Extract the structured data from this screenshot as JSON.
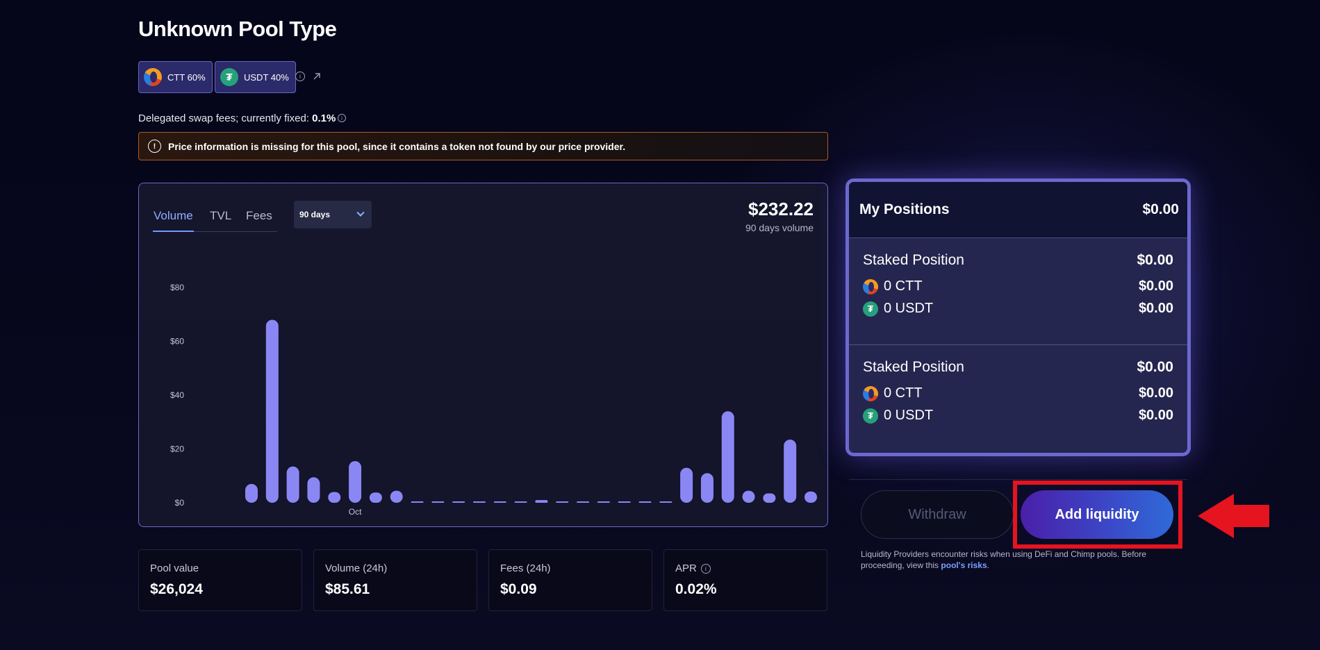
{
  "header": {
    "title": "Unknown Pool Type",
    "tokens": [
      {
        "symbol": "CTT",
        "weight": "CTT 60%",
        "icon": "ctt-token-icon"
      },
      {
        "symbol": "USDT",
        "weight": "USDT 40%",
        "icon": "usdt-token-icon"
      }
    ],
    "fees_prefix": "Delegated swap fees; currently fixed: ",
    "fees_value": "0.1%"
  },
  "alert": {
    "icon": "alert-icon",
    "text": "Price information is missing for this pool, since it contains a token not found by our price provider."
  },
  "chart_panel": {
    "tabs": [
      "Volume",
      "TVL",
      "Fees"
    ],
    "active_tab": "Volume",
    "range": "90 days",
    "total_value": "$232.22",
    "total_label": "90 days volume"
  },
  "chart_data": {
    "type": "bar",
    "ylim": [
      0,
      80
    ],
    "yticks": [
      "$0",
      "$20",
      "$40",
      "$60",
      "$80"
    ],
    "xtick_labels": [
      {
        "label": "Oct",
        "index": 5
      }
    ],
    "values": [
      7,
      68,
      13.5,
      9.5,
      4,
      15.5,
      3.8,
      4.5,
      0.3,
      0.3,
      0,
      0.2,
      0.2,
      0,
      1,
      0,
      0.1,
      0.1,
      0.2,
      0.1,
      0.5,
      13,
      11,
      34,
      4.5,
      3.5,
      23.5,
      4.2
    ],
    "bar_color": "#8a87f5",
    "grid": false
  },
  "positions": {
    "title": "My Positions",
    "total": "$0.00",
    "staked": [
      {
        "title": "Staked Position",
        "value": "$0.00",
        "tokens": [
          {
            "label": "0 CTT",
            "value": "$0.00"
          },
          {
            "label": "0 USDT",
            "value": "$0.00"
          }
        ]
      },
      {
        "title": "Staked Position",
        "value": "$0.00",
        "tokens": [
          {
            "label": "0 CTT",
            "value": "$0.00"
          },
          {
            "label": "0 USDT",
            "value": "$0.00"
          }
        ]
      }
    ]
  },
  "actions": {
    "withdraw_label": "Withdraw",
    "add_label": "Add liquidity"
  },
  "disclaimer": {
    "text": "Liquidity Providers encounter risks when using DeFi and Chimp pools. Before proceeding, view this ",
    "link": "pool's risks",
    "suffix": "."
  },
  "stats": [
    {
      "label": "Pool value",
      "value": "$26,024"
    },
    {
      "label": "Volume (24h)",
      "value": "$85.61"
    },
    {
      "label": "Fees (24h)",
      "value": "$0.09"
    },
    {
      "label": "APR",
      "value": "0.02%"
    }
  ],
  "colors": {
    "accent": "#6e9cff",
    "highlight": "#e5141f",
    "bar": "#8a87f5"
  }
}
